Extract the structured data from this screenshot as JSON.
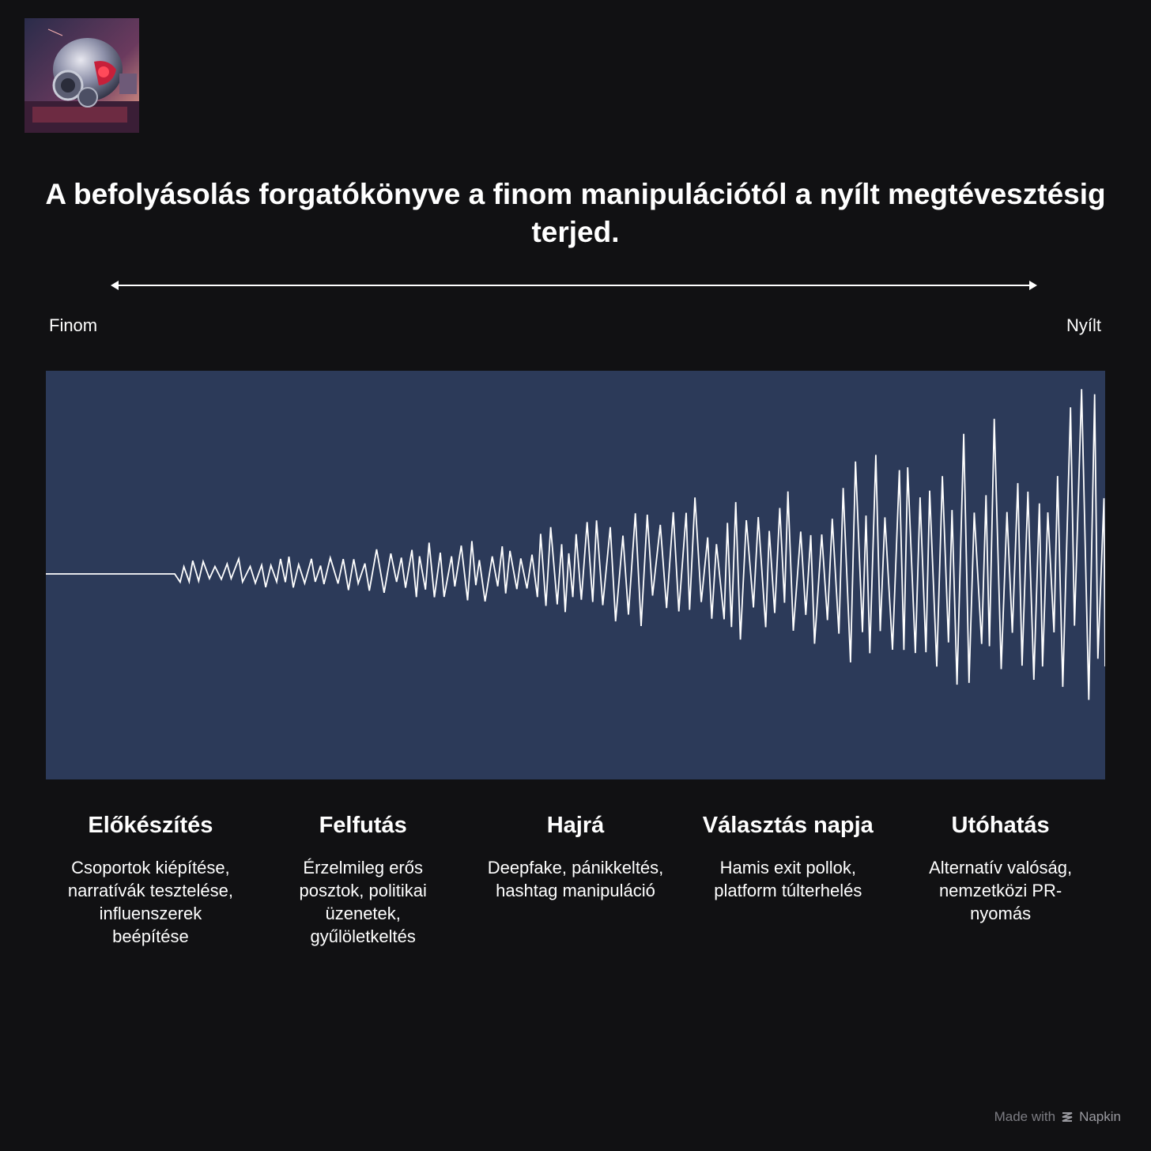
{
  "title": "A befolyásolás forgatókönyve a finom manipulációtól a nyílt megtévesztésig terjed.",
  "spectrum": {
    "left_label": "Finom",
    "right_label": "Nyílt"
  },
  "colors": {
    "background": "#111113",
    "wave_panel": "#2c3a59",
    "wave_line": "#ffffff"
  },
  "phases": [
    {
      "title": "Előkészítés",
      "description": "Csoportok kiépítése, narratívák tesztelése, influenszerek beépítése"
    },
    {
      "title": "Felfutás",
      "description": "Érzelmileg erős posztok, politikai üzenetek, gyűlöletkeltés"
    },
    {
      "title": "Hajrá",
      "description": "Deepfake, pánikkeltés, hashtag manipuláció"
    },
    {
      "title": "Választás napja",
      "description": "Hamis exit pollok, platform túlterhelés"
    },
    {
      "title": "Utóhatás",
      "description": "Alternatív valóság, nemzetközi PR-nyomás"
    }
  ],
  "footer": {
    "made_with": "Made with",
    "brand": "Napkin",
    "icon": "napkin-logo-icon"
  }
}
